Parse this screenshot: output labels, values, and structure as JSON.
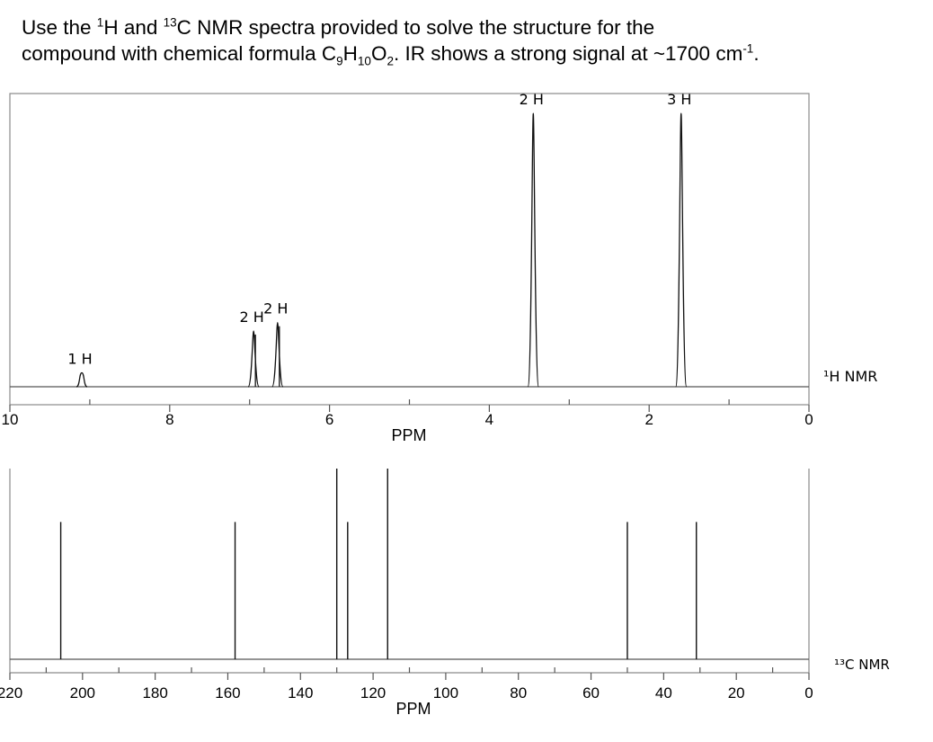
{
  "question": {
    "line1_pre": "Use the ",
    "sup_1h": "1",
    "h_letter": "H and ",
    "sup_13c": "13",
    "line1_post": "C NMR spectra provided to solve the structure for the",
    "line2_pre": "compound with chemical formula C",
    "sub_c": "9",
    "h_text": "H",
    "sub_h": "10",
    "o_text": "O",
    "sub_o": "2",
    "line2_mid": ". IR shows a strong signal at ~1700 cm",
    "sup_cm": "-1",
    "line2_end": "."
  },
  "chart_data": [
    {
      "type": "line",
      "title": "",
      "side_label": "¹H NMR",
      "xlabel": "PPM",
      "ylabel": "",
      "xlim": [
        10,
        0
      ],
      "axis_reversed": true,
      "x_ticks": [
        "10",
        "8",
        "6",
        "4",
        "2",
        "0"
      ],
      "grid": false,
      "peaks": [
        {
          "ppm": 9.1,
          "integration": "1 H",
          "relative_height": 0.05
        },
        {
          "ppm": 6.95,
          "integration": "2 H",
          "relative_height": 0.2
        },
        {
          "ppm": 6.65,
          "integration": "2 H",
          "relative_height": 0.23
        },
        {
          "ppm": 3.45,
          "integration": "2 H",
          "relative_height": 0.98
        },
        {
          "ppm": 1.6,
          "integration": "3 H",
          "relative_height": 0.98
        }
      ]
    },
    {
      "type": "bar",
      "title": "",
      "side_label": "¹³C NMR",
      "xlabel": "PPM",
      "ylabel": "",
      "xlim": [
        220,
        0
      ],
      "axis_reversed": true,
      "x_ticks": [
        "220",
        "200",
        "180",
        "160",
        "140",
        "120",
        "100",
        "80",
        "60",
        "40",
        "20",
        "0"
      ],
      "grid": false,
      "peaks": [
        {
          "ppm": 206,
          "relative_height": 0.72
        },
        {
          "ppm": 158,
          "relative_height": 0.72
        },
        {
          "ppm": 130,
          "relative_height": 1.0
        },
        {
          "ppm": 127,
          "relative_height": 0.72
        },
        {
          "ppm": 116,
          "relative_height": 1.0
        },
        {
          "ppm": 50,
          "relative_height": 0.72
        },
        {
          "ppm": 31,
          "relative_height": 0.72
        }
      ]
    }
  ]
}
